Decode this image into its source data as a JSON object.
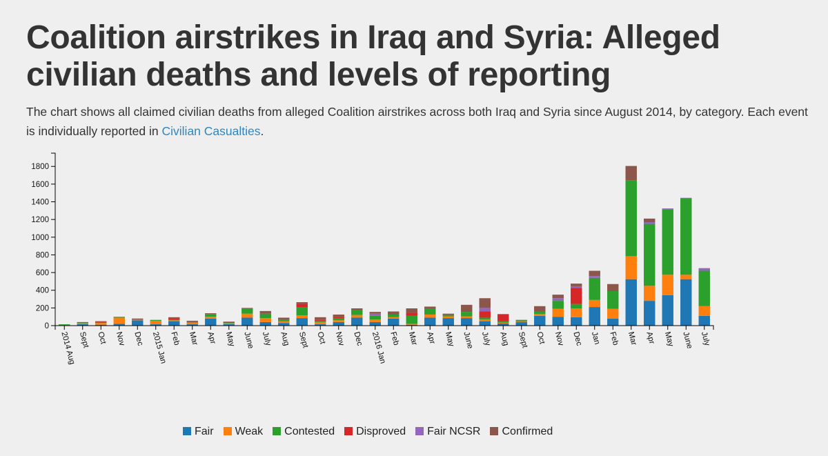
{
  "title": "Coalition airstrikes in Iraq and Syria: Alleged civilian deaths and levels of reporting",
  "subtitle_text": "The chart shows all claimed civilian deaths from alleged Coalition airstrikes across both Iraq and Syria since August 2014, by category. Each event is individually reported in ",
  "subtitle_link": "Civilian Casualties",
  "subtitle_end": ".",
  "chart_data": {
    "type": "bar",
    "stacked": true,
    "title": "Coalition airstrikes in Iraq and Syria: Alleged civilian deaths and levels of reporting",
    "xlabel": "",
    "ylabel": "",
    "ylim": [
      0,
      1950
    ],
    "yticks": [
      0,
      200,
      400,
      600,
      800,
      1000,
      1200,
      1400,
      1600,
      1800
    ],
    "ytick_labels": [
      "0",
      "200",
      "400",
      "600",
      "800",
      "1000",
      "1200",
      "1400",
      "1600",
      "1800"
    ],
    "legend_position": "bottom",
    "categories": [
      "2014 Aug",
      "Sept",
      "Oct",
      "Nov",
      "Dec",
      "2015 Jan",
      "Feb",
      "Mar",
      "Apr",
      "May",
      "June",
      "July",
      "Aug",
      "Sept",
      "Oct",
      "Nov",
      "Dec",
      "2016 Jan",
      "Feb",
      "Mar",
      "Apr",
      "May",
      "June",
      "July",
      "Aug",
      "Sept",
      "Oct",
      "Nov",
      "Dec",
      "Jan",
      "Feb",
      "Mar",
      "Apr",
      "May",
      "June",
      "July"
    ],
    "series": [
      {
        "name": "Fair",
        "color": "#1f77b4",
        "values": [
          5,
          15,
          10,
          20,
          60,
          15,
          50,
          15,
          80,
          15,
          90,
          40,
          30,
          85,
          15,
          40,
          90,
          40,
          80,
          10,
          90,
          85,
          85,
          50,
          25,
          40,
          110,
          100,
          95,
          210,
          80,
          525,
          280,
          345,
          525,
          110
        ]
      },
      {
        "name": "Weak",
        "color": "#ff7f0e",
        "values": [
          0,
          10,
          20,
          70,
          5,
          40,
          10,
          20,
          20,
          10,
          45,
          45,
          20,
          30,
          25,
          20,
          30,
          30,
          15,
          10,
          35,
          20,
          20,
          20,
          10,
          5,
          20,
          90,
          100,
          80,
          110,
          260,
          170,
          230,
          50,
          110
        ]
      },
      {
        "name": "Contested",
        "color": "#2ca02c",
        "values": [
          10,
          5,
          5,
          5,
          5,
          10,
          5,
          5,
          30,
          5,
          55,
          50,
          15,
          90,
          15,
          20,
          55,
          45,
          30,
          90,
          70,
          15,
          50,
          20,
          15,
          15,
          30,
          90,
          50,
          250,
          200,
          860,
          700,
          740,
          860,
          400
        ]
      },
      {
        "name": "Disproved",
        "color": "#d62728",
        "values": [
          0,
          0,
          10,
          0,
          0,
          0,
          20,
          0,
          0,
          0,
          0,
          0,
          0,
          40,
          10,
          20,
          0,
          0,
          0,
          35,
          0,
          0,
          0,
          70,
          80,
          0,
          0,
          0,
          180,
          0,
          0,
          0,
          0,
          0,
          0,
          0
        ]
      },
      {
        "name": "Fair NCSR",
        "color": "#9467bd",
        "values": [
          0,
          0,
          0,
          0,
          0,
          0,
          0,
          0,
          0,
          0,
          0,
          0,
          0,
          0,
          0,
          0,
          0,
          20,
          0,
          0,
          0,
          0,
          0,
          40,
          0,
          0,
          0,
          30,
          20,
          20,
          0,
          0,
          20,
          10,
          10,
          30
        ]
      },
      {
        "name": "Confirmed",
        "color": "#8c564b",
        "values": [
          0,
          10,
          5,
          5,
          10,
          0,
          10,
          15,
          10,
          15,
          10,
          30,
          25,
          20,
          30,
          25,
          20,
          20,
          35,
          50,
          20,
          15,
          80,
          110,
          0,
          5,
          60,
          40,
          30,
          60,
          80,
          160,
          40,
          0,
          0,
          0
        ]
      }
    ]
  }
}
